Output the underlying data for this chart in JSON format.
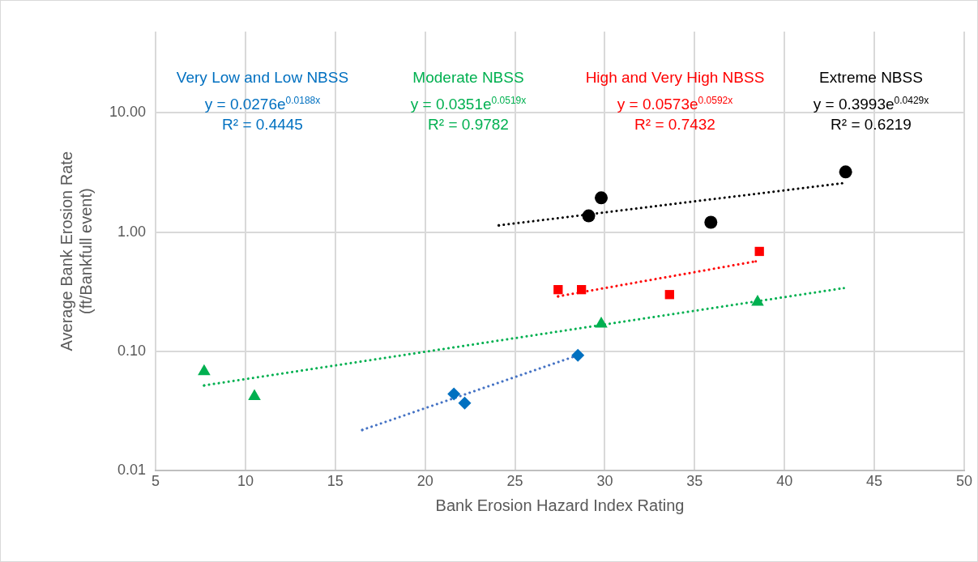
{
  "chart_data": {
    "type": "scatter",
    "xlabel": "Bank Erosion Hazard Index Rating",
    "ylabel": "Average Bank Erosion Rate\n(ft/Bankfull event)",
    "xlim": [
      5,
      50
    ],
    "xticks": [
      5,
      10,
      15,
      20,
      25,
      30,
      35,
      40,
      45,
      50
    ],
    "ylim": [
      0.01,
      48
    ],
    "yticks": [
      {
        "value": 0.01,
        "label": "0.01"
      },
      {
        "value": 0.1,
        "label": "0.10"
      },
      {
        "value": 1,
        "label": "1.00"
      },
      {
        "value": 10,
        "label": "10.00"
      }
    ],
    "log": "y",
    "grid": true,
    "legend": false,
    "series": [
      {
        "name": "Very Low and Low NBSS",
        "type": "scatter",
        "marker": "diamond",
        "color": "#0070c0",
        "x": [
          21.6,
          22.2,
          28.5
        ],
        "values": [
          0.044,
          0.037,
          0.093
        ]
      },
      {
        "name": "Moderate NBSS",
        "type": "scatter",
        "marker": "triangle",
        "color": "#00b050",
        "x": [
          7.7,
          10.5,
          29.8,
          38.5
        ],
        "values": [
          0.068,
          0.042,
          0.17,
          0.26
        ]
      },
      {
        "name": "High and Very High NBSS",
        "type": "scatter",
        "marker": "square",
        "color": "#ff0000",
        "x": [
          27.4,
          28.7,
          33.6,
          38.6
        ],
        "values": [
          0.33,
          0.33,
          0.3,
          0.69
        ]
      },
      {
        "name": "Extreme NBSS",
        "type": "scatter",
        "marker": "circle",
        "color": "#000000",
        "x": [
          29.1,
          29.8,
          35.9,
          43.4
        ],
        "values": [
          1.37,
          1.94,
          1.21,
          3.2
        ]
      },
      {
        "type": "line",
        "marker": "none",
        "line_style": "dotted",
        "color": "#4472c4",
        "x": [
          16.5,
          28.5
        ],
        "values": [
          0.022,
          0.093
        ]
      },
      {
        "type": "line",
        "marker": "none",
        "line_style": "dotted",
        "color": "#00b050",
        "x": [
          7.7,
          43.3
        ],
        "values": [
          0.052,
          0.34
        ]
      },
      {
        "type": "line",
        "marker": "none",
        "line_style": "dotted",
        "color": "#ff0000",
        "x": [
          27.4,
          38.4
        ],
        "values": [
          0.29,
          0.57
        ]
      },
      {
        "type": "line",
        "marker": "none",
        "line_style": "dotted",
        "color": "#000000",
        "x": [
          24.1,
          43.2
        ],
        "values": [
          1.14,
          2.57
        ]
      }
    ],
    "annotations": [
      "y = 0.0276e$^{0.0188x}$",
      "R² = 0.4445",
      "y = 0.0351e$^{0.0519x}$",
      "R² = 0.9782",
      "y = 0.0573e$^{0.0592x}$",
      "R² = 0.7432",
      "y = 0.3993e$^{0.0429x}$",
      "R² = 0.6219"
    ]
  }
}
